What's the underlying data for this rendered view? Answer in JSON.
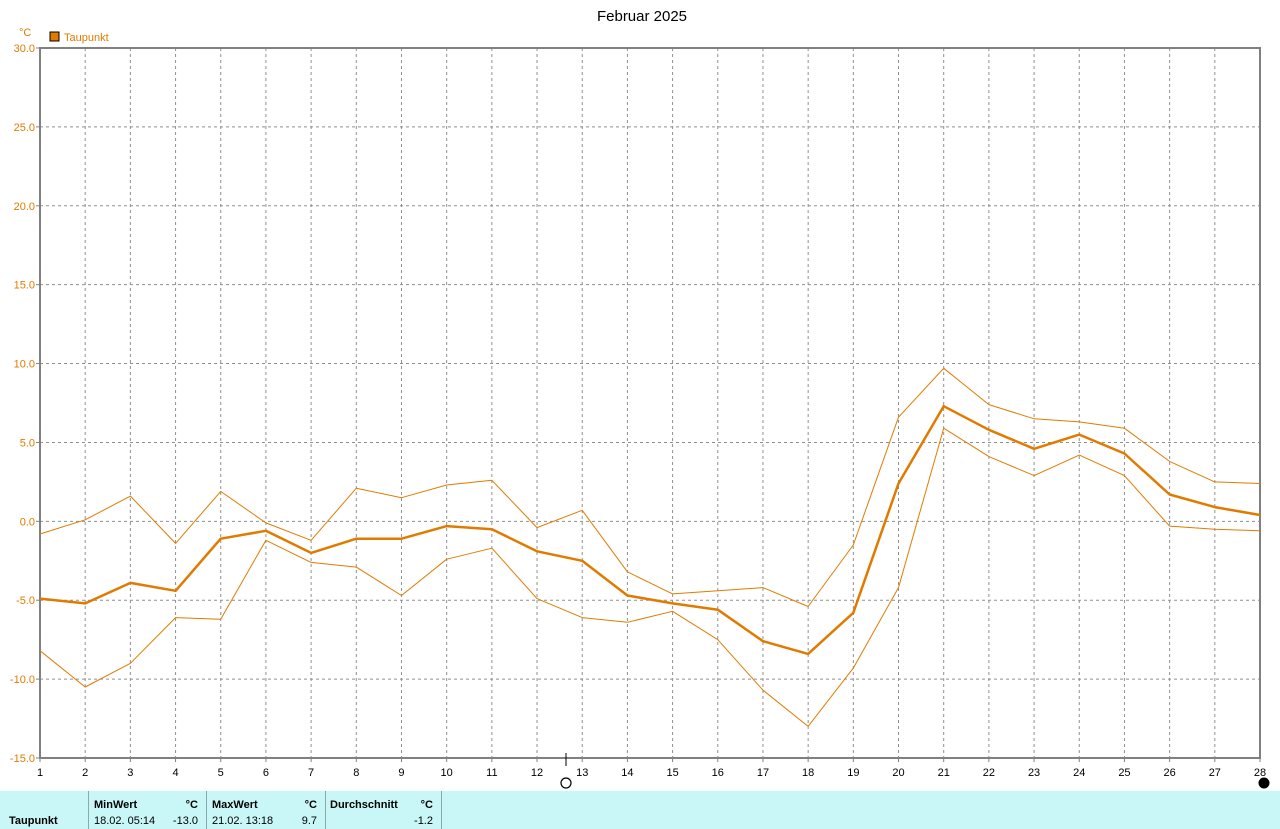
{
  "chart_data": {
    "type": "line",
    "title": "Februar 2025",
    "ylabel": "°C",
    "ylim": [
      -15,
      30
    ],
    "yticks": [
      "30.0",
      "25.0",
      "20.0",
      "15.0",
      "10.0",
      "5.0",
      "0.0",
      "-5.0",
      "-10.0",
      "-15.0"
    ],
    "ytick_values": [
      30,
      25,
      20,
      15,
      10,
      5,
      0,
      -5,
      -10,
      -15
    ],
    "x": [
      1,
      2,
      3,
      4,
      5,
      6,
      7,
      8,
      9,
      10,
      11,
      12,
      13,
      14,
      15,
      16,
      17,
      18,
      19,
      20,
      21,
      22,
      23,
      24,
      25,
      26,
      27,
      28
    ],
    "xticks": [
      "1",
      "2",
      "3",
      "4",
      "5",
      "6",
      "7",
      "8",
      "9",
      "10",
      "11",
      "12",
      "13",
      "14",
      "15",
      "16",
      "17",
      "18",
      "19",
      "20",
      "21",
      "22",
      "23",
      "24",
      "25",
      "26",
      "27",
      "28"
    ],
    "grid": true,
    "legend": {
      "position": "top-left",
      "entries": [
        "Taupunkt"
      ]
    },
    "color": "#e07b00",
    "series": [
      {
        "name": "Taupunkt",
        "role": "average",
        "values": [
          -4.9,
          -5.2,
          -3.9,
          -4.4,
          -1.1,
          -0.6,
          -2.0,
          -1.1,
          -1.1,
          -0.3,
          -0.5,
          -1.9,
          -2.5,
          -4.7,
          -5.2,
          -5.6,
          -7.6,
          -8.4,
          -5.8,
          2.4,
          7.3,
          5.8,
          4.6,
          5.5,
          4.3,
          1.7,
          0.9,
          0.4
        ]
      },
      {
        "role": "max",
        "values": [
          -0.8,
          0.1,
          1.6,
          -1.4,
          1.9,
          -0.1,
          -1.2,
          2.1,
          1.5,
          2.3,
          2.6,
          -0.4,
          0.7,
          -3.2,
          -4.6,
          -4.4,
          -4.2,
          -5.4,
          -1.5,
          6.6,
          9.7,
          7.4,
          6.5,
          6.3,
          5.9,
          3.8,
          2.5,
          2.4
        ]
      },
      {
        "role": "min",
        "values": [
          -8.2,
          -10.5,
          -9.0,
          -6.1,
          -6.2,
          -1.2,
          -2.6,
          -2.9,
          -4.7,
          -2.4,
          -1.7,
          -4.9,
          -6.1,
          -6.4,
          -5.7,
          -7.5,
          -10.7,
          -13.0,
          -9.3,
          -4.2,
          5.9,
          4.1,
          2.9,
          4.2,
          2.9,
          -0.3,
          -0.5,
          -0.6
        ]
      }
    ]
  },
  "stats": {
    "row_label": "Taupunkt",
    "min_header": "MinWert",
    "min_unit": "°C",
    "min_time": "18.02.  05:14",
    "min_value": "-13.0",
    "max_header": "MaxWert",
    "max_unit": "°C",
    "max_time": "21.02.  13:18",
    "max_value": "9.7",
    "avg_header": "Durchschnitt",
    "avg_unit": "°C",
    "avg_value": "-1.2"
  }
}
